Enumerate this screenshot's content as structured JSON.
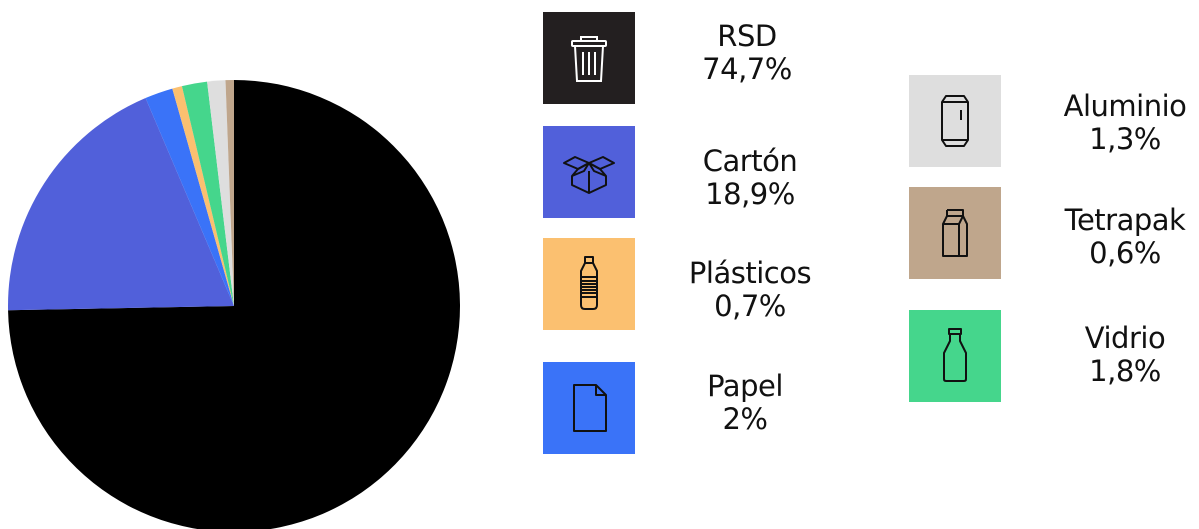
{
  "chart_data": {
    "type": "pie",
    "title": "",
    "slices": [
      {
        "label": "RSD",
        "value": 74.7,
        "value_text": "74,7%",
        "color": "#000000",
        "icon": "trash-bin-icon"
      },
      {
        "label": "Cartón",
        "value": 18.9,
        "value_text": "18,9%",
        "color": "#5160DA",
        "icon": "box-icon"
      },
      {
        "label": "Papel",
        "value": 2,
        "value_text": "2%",
        "color": "#3A73F8",
        "icon": "paper-sheet-icon"
      },
      {
        "label": "Plásticos",
        "value": 0.7,
        "value_text": "0,7%",
        "color": "#FBC070",
        "icon": "plastic-bottle-icon"
      },
      {
        "label": "Vidrio",
        "value": 1.8,
        "value_text": "1,8%",
        "color": "#45D68C",
        "icon": "glass-bottle-icon"
      },
      {
        "label": "Aluminio",
        "value": 1.3,
        "value_text": "1,3%",
        "color": "#DEDEDE",
        "icon": "can-icon"
      },
      {
        "label": "Tetrapak",
        "value": 0.6,
        "value_text": "0,6%",
        "color": "#BFA68C",
        "icon": "carton-pack-icon"
      }
    ],
    "legend_placement": "right"
  }
}
